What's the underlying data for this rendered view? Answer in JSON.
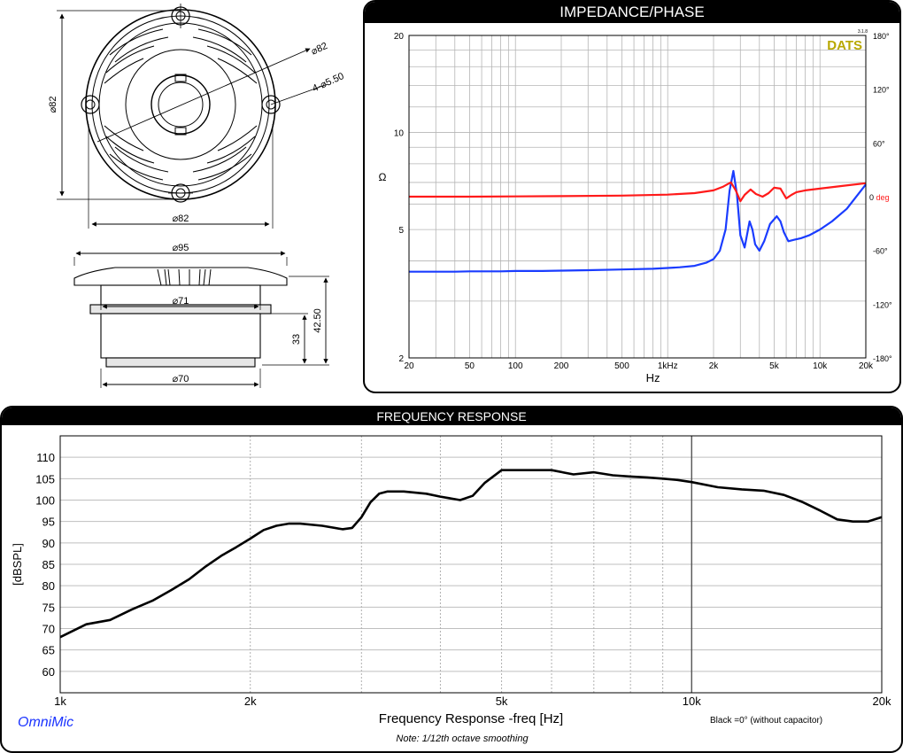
{
  "drawing": {
    "dims": {
      "top_diameter_h": "⌀82",
      "top_diameter_v": "⌀82",
      "top_diameter_diag": "⌀82",
      "mount_holes": "4-⌀5.50",
      "side_flange": "⌀95",
      "side_body_top": "⌀71",
      "side_body_bottom": "⌀70",
      "side_depth_body": "33",
      "side_depth_total": "42.50"
    }
  },
  "impedance": {
    "header": "IMPEDANCE/PHASE",
    "brand": "DATS",
    "brand_version": "3.1.8",
    "colors": {
      "impedance": "#1a3cff",
      "phase": "#ff1a1a",
      "brand": "#b8a800"
    },
    "chart_data": {
      "type": "line",
      "xlabel": "Hz",
      "ylabel": "Ω",
      "x_scale": "log",
      "y_scale": "log",
      "xlim": [
        20,
        20000
      ],
      "ylim": [
        2,
        20
      ],
      "y2lim": [
        -180,
        180
      ],
      "x_ticks": [
        {
          "v": 20,
          "label": "20"
        },
        {
          "v": 50,
          "label": "50"
        },
        {
          "v": 100,
          "label": "100"
        },
        {
          "v": 200,
          "label": "200"
        },
        {
          "v": 500,
          "label": "500"
        },
        {
          "v": 1000,
          "label": "1kHz"
        },
        {
          "v": 2000,
          "label": "2k"
        },
        {
          "v": 5000,
          "label": "5k"
        },
        {
          "v": 10000,
          "label": "10k"
        },
        {
          "v": 20000,
          "label": "20k"
        }
      ],
      "y_ticks": [
        {
          "v": 2,
          "label": "2"
        },
        {
          "v": 5,
          "label": "5"
        },
        {
          "v": 10,
          "label": "10"
        },
        {
          "v": 20,
          "label": "20"
        }
      ],
      "y2_ticks": [
        {
          "v": 180,
          "label": "180°"
        },
        {
          "v": 120,
          "label": "120°"
        },
        {
          "v": 60,
          "label": "60°"
        },
        {
          "v": 0,
          "label": "0",
          "unit": "deg"
        },
        {
          "v": -60,
          "label": "-60°"
        },
        {
          "v": -120,
          "label": "-120°"
        },
        {
          "v": -180,
          "label": "-180°"
        }
      ],
      "series": [
        {
          "axis": "left",
          "x": [
            20,
            30,
            40,
            50,
            60,
            80,
            100,
            150,
            200,
            300,
            500,
            800,
            1000,
            1200,
            1500,
            1800,
            2000,
            2200,
            2400,
            2550,
            2700,
            2850,
            3000,
            3200,
            3450,
            3600,
            3750,
            4000,
            4300,
            4700,
            5200,
            5500,
            5800,
            6200,
            6800,
            7500,
            8500,
            10000,
            12000,
            15000,
            20000
          ],
          "values": [
            3.7,
            3.7,
            3.7,
            3.71,
            3.71,
            3.71,
            3.72,
            3.72,
            3.73,
            3.74,
            3.76,
            3.78,
            3.8,
            3.82,
            3.86,
            3.95,
            4.05,
            4.3,
            5.0,
            6.6,
            7.6,
            6.4,
            4.8,
            4.4,
            5.3,
            5.0,
            4.5,
            4.3,
            4.6,
            5.2,
            5.5,
            5.3,
            4.9,
            4.6,
            4.65,
            4.7,
            4.8,
            5.0,
            5.3,
            5.8,
            6.9
          ]
        },
        {
          "axis": "right",
          "x": [
            20,
            50,
            100,
            200,
            500,
            1000,
            1500,
            2000,
            2300,
            2600,
            2800,
            3000,
            3200,
            3500,
            3800,
            4200,
            4600,
            5000,
            5500,
            6000,
            6500,
            7000,
            8000,
            10000,
            14000,
            20000
          ],
          "values": [
            0,
            0,
            0.3,
            0.6,
            1.2,
            2.3,
            4,
            7,
            11,
            16,
            7,
            -5,
            2,
            8,
            3,
            0,
            4,
            10,
            9,
            -2,
            2,
            5,
            7,
            9,
            12,
            15
          ]
        }
      ]
    }
  },
  "frequency": {
    "header": "FREQUENCY RESPONSE",
    "brand": "OmniMic",
    "note": "Note: 1/12th octave smoothing",
    "legend": "Black =0°  (without capacitor)",
    "colors": {
      "brand": "#1a33ff"
    },
    "chart_data": {
      "type": "line",
      "xlabel": "Frequency Response -freq [Hz]",
      "ylabel": "[dBSPL]",
      "x_scale": "log",
      "xlim": [
        1000,
        20000
      ],
      "ylim": [
        55,
        115
      ],
      "x_ticks": [
        {
          "v": 1000,
          "label": "1k"
        },
        {
          "v": 2000,
          "label": "2k"
        },
        {
          "v": 5000,
          "label": "5k"
        },
        {
          "v": 10000,
          "label": "10k"
        },
        {
          "v": 20000,
          "label": "20k"
        }
      ],
      "y_ticks": [
        60,
        65,
        70,
        75,
        80,
        85,
        90,
        95,
        100,
        105,
        110
      ],
      "series": [
        {
          "x": [
            1000,
            1100,
            1200,
            1300,
            1400,
            1500,
            1600,
            1700,
            1800,
            1900,
            2000,
            2100,
            2200,
            2300,
            2400,
            2600,
            2800,
            2900,
            3000,
            3100,
            3200,
            3300,
            3500,
            3800,
            4000,
            4300,
            4500,
            4700,
            5000,
            5200,
            5500,
            6000,
            6500,
            7000,
            7500,
            8000,
            8500,
            9000,
            9500,
            10000,
            11000,
            12000,
            13000,
            14000,
            15000,
            16000,
            17000,
            18000,
            19000,
            20000
          ],
          "values": [
            68,
            71,
            72,
            74.5,
            76.5,
            79,
            81.5,
            84.5,
            87,
            89,
            91,
            93,
            94,
            94.5,
            94.5,
            94,
            93.2,
            93.5,
            96,
            99.5,
            101.5,
            102,
            102,
            101.5,
            100.8,
            100,
            101,
            104,
            107,
            107,
            107,
            107,
            106,
            106.5,
            105.8,
            105.5,
            105.3,
            105,
            104.7,
            104.2,
            103,
            102.5,
            102.2,
            101.2,
            99.5,
            97.5,
            95.5,
            95,
            95,
            96
          ]
        }
      ]
    }
  }
}
